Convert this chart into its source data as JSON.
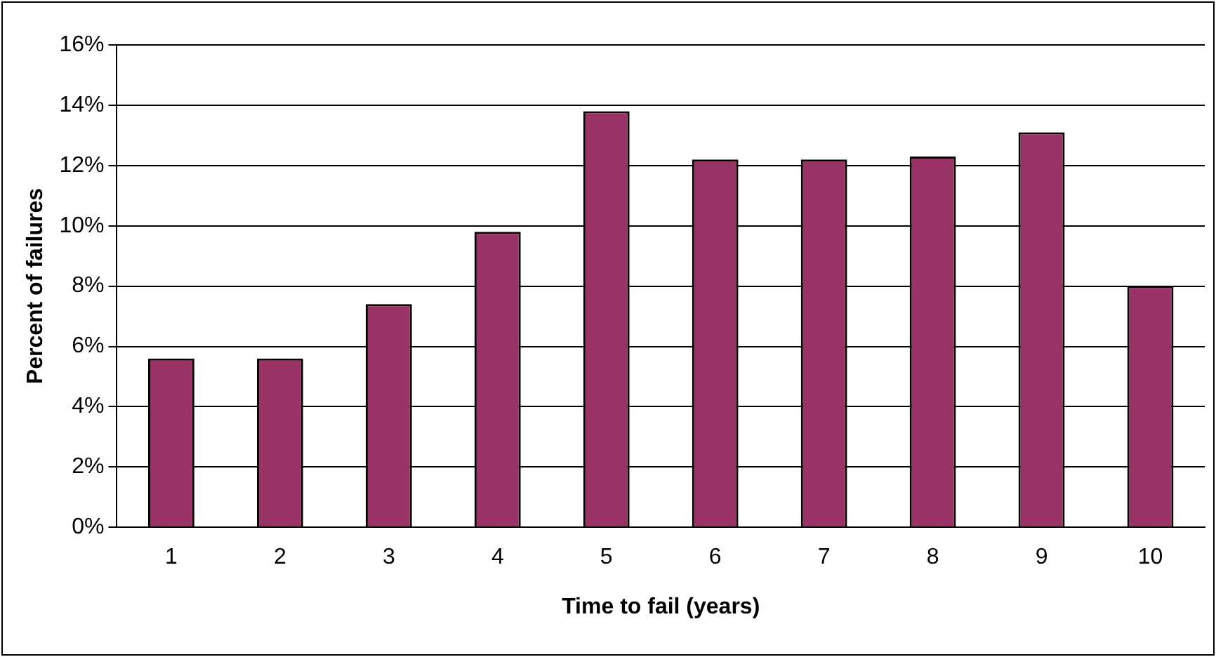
{
  "chart_data": {
    "type": "bar",
    "xlabel": "Time to fail (years)",
    "ylabel": "Percent of failures",
    "categories": [
      "1",
      "2",
      "3",
      "4",
      "5",
      "6",
      "7",
      "8",
      "9",
      "10"
    ],
    "values": [
      5.6,
      5.6,
      7.4,
      9.8,
      13.8,
      12.2,
      12.2,
      12.3,
      13.1,
      8.0
    ],
    "color": "#993366",
    "ylim": [
      0,
      16
    ],
    "yticks": [
      {
        "value": 0,
        "label": "0%"
      },
      {
        "value": 2,
        "label": "2%"
      },
      {
        "value": 4,
        "label": "4%"
      },
      {
        "value": 6,
        "label": "6%"
      },
      {
        "value": 8,
        "label": "8%"
      },
      {
        "value": 10,
        "label": "10%"
      },
      {
        "value": 12,
        "label": "12%"
      },
      {
        "value": 14,
        "label": "14%"
      },
      {
        "value": 16,
        "label": "16%"
      }
    ],
    "grid": "y",
    "legend": false
  }
}
